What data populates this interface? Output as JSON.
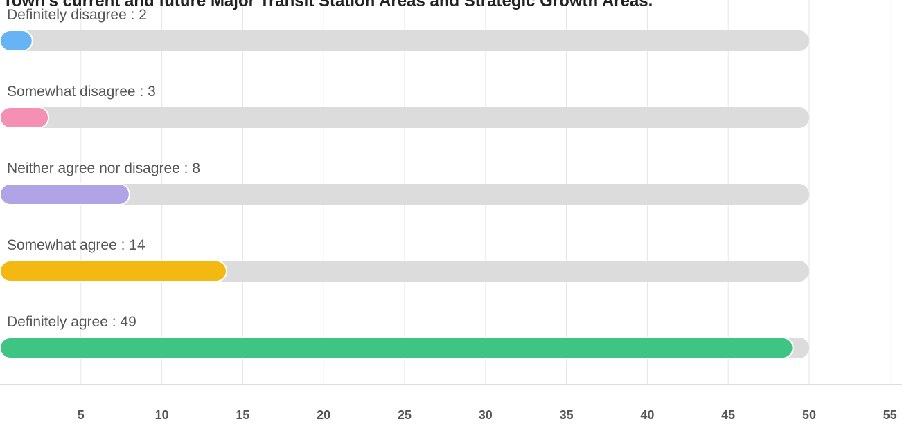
{
  "chart_data": {
    "type": "bar",
    "orientation": "horizontal",
    "title": "Town's current and future Major Transit Station Areas and Strategic Growth Areas.",
    "categories": [
      "Definitely disagree",
      "Somewhat disagree",
      "Neither agree nor disagree",
      "Somewhat agree",
      "Definitely agree"
    ],
    "values": [
      2,
      3,
      8,
      14,
      49
    ],
    "label_separator": " : ",
    "colors": [
      "#66b3f5",
      "#f590b4",
      "#b0a4e6",
      "#f3b912",
      "#3ec583"
    ],
    "track_color": "#dcdcdc",
    "track_max": 50,
    "xlim": [
      0,
      55
    ],
    "xticks": [
      5,
      10,
      15,
      20,
      25,
      30,
      35,
      40,
      45,
      50,
      55
    ],
    "grid": true
  }
}
